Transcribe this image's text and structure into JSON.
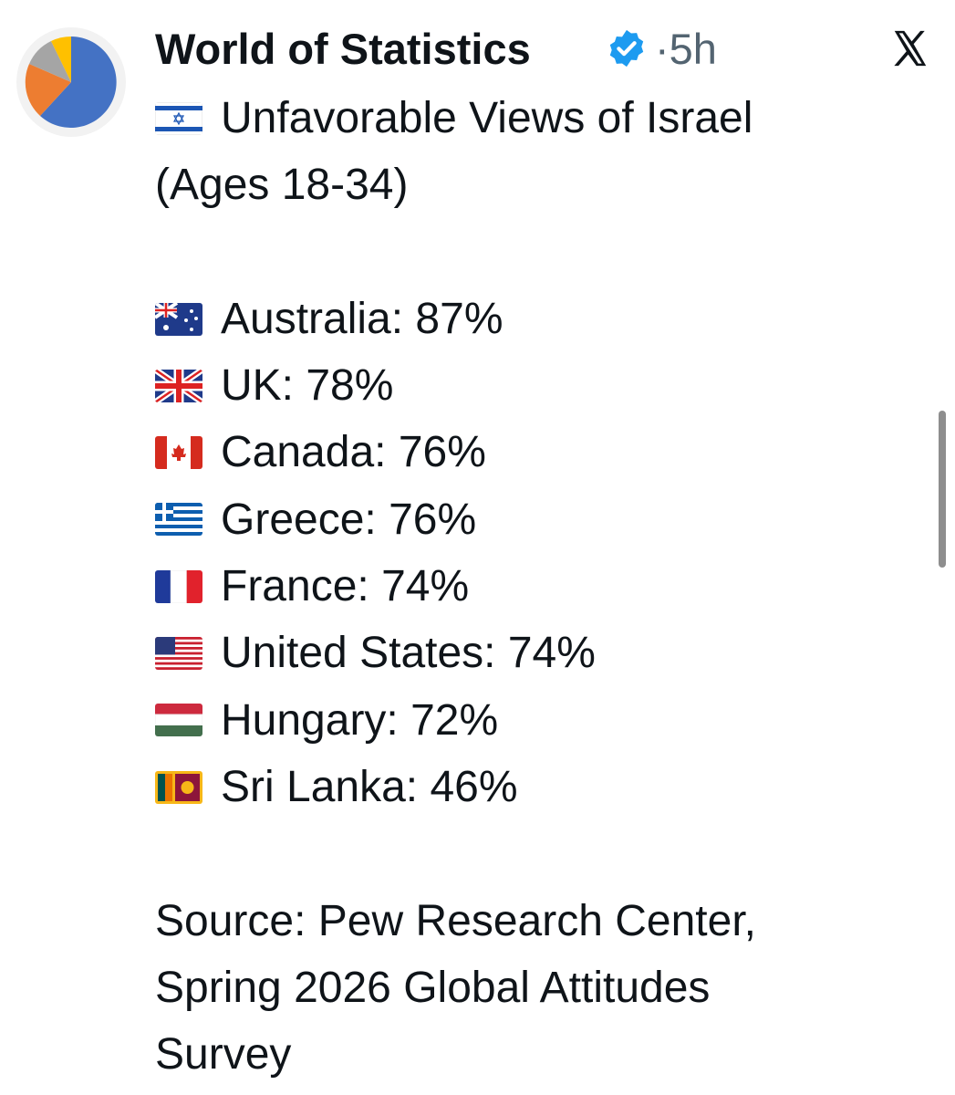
{
  "header": {
    "name": "World of Statistics",
    "separator": "·",
    "time": "5h"
  },
  "post": {
    "title_lines": [
      "Unfavorable Views of Israel",
      "(Ages 18-34)"
    ],
    "items": [
      "Australia: 87%",
      "UK: 78%",
      "Canada: 76%",
      "Greece: 76%",
      "France: 74%",
      "United States: 74%",
      "Hungary: 72%",
      "Sri Lanka: 46%"
    ],
    "source_lines": [
      "Source: Pew Research Center,",
      "Spring 2026 Global Attitudes",
      "Survey"
    ]
  }
}
